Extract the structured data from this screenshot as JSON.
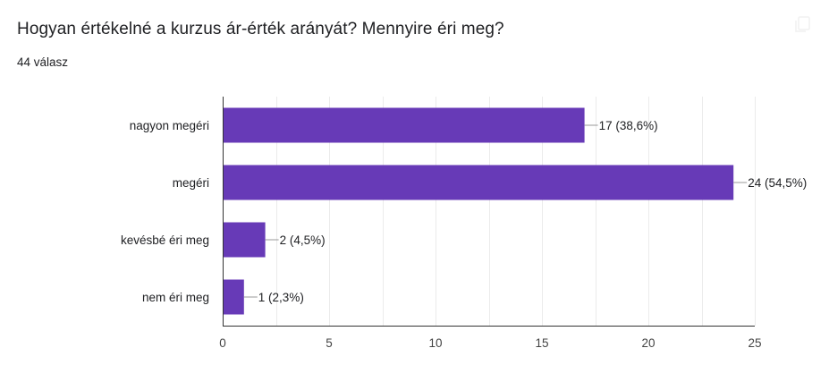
{
  "question": {
    "title": "Hogyan értékelné a kurzus ár-érték arányát? Mennyire éri meg?",
    "response_count": "44 válasz"
  },
  "toolbar": {
    "copy_icon": "copy-icon"
  },
  "colors": {
    "bar": "#673ab7",
    "grid": "#ebebeb",
    "axis": "#333333",
    "leader": "#999999"
  },
  "chart_data": {
    "type": "bar",
    "orientation": "horizontal",
    "categories": [
      "nagyon megéri",
      "megéri",
      "kevésbé éri meg",
      "nem éri meg"
    ],
    "values": [
      17,
      24,
      2,
      1
    ],
    "data_labels": [
      "17 (38,6%)",
      "24 (54,5%)",
      "2 (4,5%)",
      "1 (2,3%)"
    ],
    "x_ticks": [
      0,
      5,
      10,
      15,
      20,
      25
    ],
    "xlim": [
      0,
      25
    ],
    "grid": true,
    "legend": "none",
    "title": "",
    "xlabel": "",
    "ylabel": ""
  }
}
